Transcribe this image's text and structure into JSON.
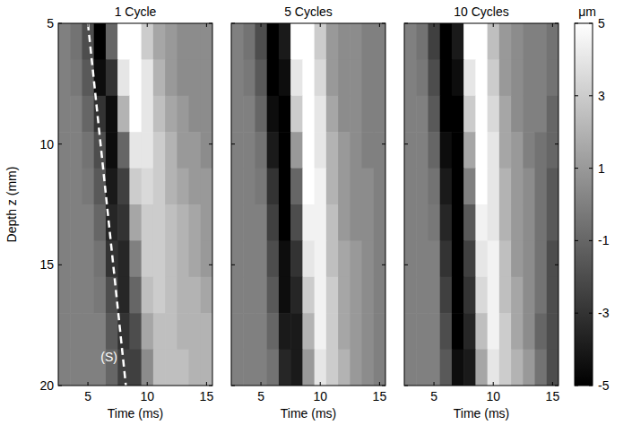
{
  "chart_data": [
    {
      "type": "heatmap",
      "title": "1 Cycle",
      "x_label": "Time (ms)",
      "y_label": "Depth z (mm)",
      "color": "gray",
      "xlim": [
        2.5,
        15.5
      ],
      "xticks": [
        5,
        10,
        15
      ],
      "ylim": [
        5,
        20
      ],
      "yticks": [
        5,
        10,
        15,
        20
      ],
      "x": [
        3,
        4,
        5,
        6,
        7,
        8,
        9,
        10,
        11,
        12,
        13,
        14,
        15
      ],
      "y": [
        5.75,
        7.25,
        8.75,
        10.25,
        11.75,
        13.25,
        14.75,
        16.25,
        17.75,
        19.25
      ],
      "cells": [
        [
          0,
          -0.5,
          -2,
          -5,
          -1,
          5,
          5,
          3,
          1.5,
          1,
          0.5,
          0.5,
          0.5
        ],
        [
          0,
          -0.3,
          -1.5,
          -4.5,
          -3,
          4,
          5,
          4,
          2,
          1,
          0.5,
          0.5,
          0.5
        ],
        [
          0,
          0,
          -1,
          -3,
          -4.5,
          2,
          5,
          4,
          2.5,
          1.5,
          1,
          0.5,
          0.5
        ],
        [
          0,
          0,
          -0.5,
          -2,
          -4.5,
          -1,
          4,
          4,
          3,
          2,
          1,
          1,
          0.5
        ],
        [
          0,
          0,
          -0.3,
          -1.5,
          -4,
          -2.5,
          3,
          3.5,
          3,
          2,
          1.5,
          1,
          1
        ],
        [
          0,
          0,
          0,
          -1,
          -3.5,
          -3,
          1.5,
          3,
          3,
          2.5,
          2,
          1.5,
          1
        ],
        [
          0,
          0,
          0,
          -0.5,
          -3,
          -3.5,
          0,
          3,
          3,
          2.5,
          2,
          1.5,
          1
        ],
        [
          0,
          0,
          0,
          -0.3,
          -2,
          -3.5,
          -1,
          2.5,
          3,
          2.5,
          2,
          2,
          1.5
        ],
        [
          0,
          0,
          0,
          0,
          -1.5,
          -3,
          -2,
          1.5,
          2.5,
          2.5,
          2,
          2,
          2
        ],
        [
          0,
          0,
          0,
          0,
          -1,
          -2.5,
          -2.5,
          0.5,
          2.5,
          2.5,
          2.5,
          2,
          2
        ]
      ],
      "annotation_line": {
        "x": [
          5.0,
          8.2
        ],
        "y": [
          5,
          20
        ],
        "label": "(S)",
        "line_style": "dashed"
      }
    },
    {
      "type": "heatmap",
      "title": "5 Cycles",
      "x_label": "Time (ms)",
      "color": "gray",
      "tick_labels": "x",
      "xlim": [
        2.5,
        15.5
      ],
      "xticks": [
        5,
        10,
        15
      ],
      "ylim": [
        5,
        20
      ],
      "yticks": [
        5,
        10,
        15,
        20
      ],
      "x": [
        3,
        4,
        5,
        6,
        7,
        8,
        9,
        10,
        11,
        12,
        13,
        14,
        15
      ],
      "y": [
        5.75,
        7.25,
        8.75,
        10.25,
        11.75,
        13.25,
        14.75,
        16.25,
        17.75,
        19.25
      ],
      "cells": [
        [
          0,
          -0.5,
          -2,
          -5,
          -4,
          5,
          5,
          3,
          1,
          0.5,
          0.5,
          0,
          0
        ],
        [
          0,
          -0.3,
          -1.5,
          -5,
          -4.5,
          4,
          5,
          3.5,
          1,
          0.5,
          0.5,
          0,
          0
        ],
        [
          0,
          0,
          -1,
          -4.5,
          -5,
          3,
          5,
          4,
          1.5,
          0.5,
          0.5,
          0,
          0
        ],
        [
          0,
          0,
          -0.5,
          -4,
          -5,
          1,
          5,
          4,
          2,
          1,
          0.5,
          0,
          0
        ],
        [
          0,
          0,
          -0.3,
          -3,
          -5,
          -1,
          5,
          4.5,
          2,
          1,
          0.5,
          0.5,
          0
        ],
        [
          0,
          0,
          0,
          -2.5,
          -5,
          -2,
          4.5,
          4.5,
          2.5,
          1,
          0.5,
          0.5,
          0
        ],
        [
          0,
          0,
          0,
          -2,
          -4.5,
          -3,
          4,
          4.5,
          2.5,
          1.5,
          1,
          0.5,
          0
        ],
        [
          0,
          0,
          0,
          -1.5,
          -4.5,
          -3.5,
          3,
          4.5,
          3,
          1.5,
          1,
          0.5,
          0
        ],
        [
          0,
          0,
          0,
          -1,
          -4,
          -4,
          2,
          4.5,
          3,
          1.5,
          1,
          0.5,
          0
        ],
        [
          0,
          0,
          0,
          -0.5,
          -3.5,
          -4,
          1,
          4,
          3,
          2,
          1,
          0.5,
          0
        ]
      ]
    },
    {
      "type": "heatmap",
      "title": "10 Cycles",
      "x_label": "Time (ms)",
      "color": "gray",
      "tick_labels": "x",
      "xlim": [
        2.5,
        15.5
      ],
      "xticks": [
        5,
        10,
        15
      ],
      "ylim": [
        5,
        20
      ],
      "yticks": [
        5,
        10,
        15,
        20
      ],
      "x": [
        3,
        4,
        5,
        6,
        7,
        8,
        9,
        10,
        11,
        12,
        13,
        14,
        15
      ],
      "y": [
        5.75,
        7.25,
        8.75,
        10.25,
        11.75,
        13.25,
        14.75,
        16.25,
        17.75,
        19.25
      ],
      "cells": [
        [
          0,
          -0.5,
          -2.5,
          -5,
          -4,
          5,
          5,
          2.5,
          1,
          0.5,
          0,
          0,
          -0.5
        ],
        [
          0,
          -0.3,
          -2,
          -5,
          -4.5,
          4,
          5,
          3,
          1,
          0.5,
          0,
          0,
          -0.5
        ],
        [
          0,
          0,
          -1.5,
          -5,
          -5,
          3,
          5,
          3.5,
          1.5,
          0.5,
          0,
          0,
          -1
        ],
        [
          0,
          0,
          -1,
          -4.5,
          -5,
          1.5,
          5,
          4,
          1.5,
          1,
          0,
          -0.5,
          -1
        ],
        [
          0,
          0,
          -0.5,
          -4,
          -5,
          0,
          5,
          4,
          2,
          1,
          0.5,
          -0.5,
          -1.5
        ],
        [
          0,
          0,
          -0.3,
          -3.5,
          -5,
          -1.5,
          4.5,
          4,
          2,
          1,
          0.5,
          -0.5,
          -1.5
        ],
        [
          0,
          0,
          0,
          -3,
          -5,
          -2.5,
          4,
          4.5,
          2.5,
          1,
          0.5,
          -0.5,
          -2
        ],
        [
          0,
          0,
          0,
          -2.5,
          -5,
          -3,
          3.5,
          4.5,
          2.5,
          1.5,
          0.5,
          -0.5,
          -2
        ],
        [
          0,
          0,
          0,
          -2,
          -5,
          -3.5,
          2.5,
          4.5,
          3,
          1.5,
          0.5,
          -1,
          -2
        ],
        [
          0,
          0,
          0,
          -1.5,
          -4.5,
          -4,
          1.5,
          4,
          3,
          2,
          1,
          -0.5,
          -2
        ]
      ],
      "colorbar": {
        "range": [
          -5,
          5
        ],
        "ticks": [
          5,
          3,
          1,
          -1,
          -3,
          -5
        ],
        "label": "μm"
      }
    }
  ]
}
